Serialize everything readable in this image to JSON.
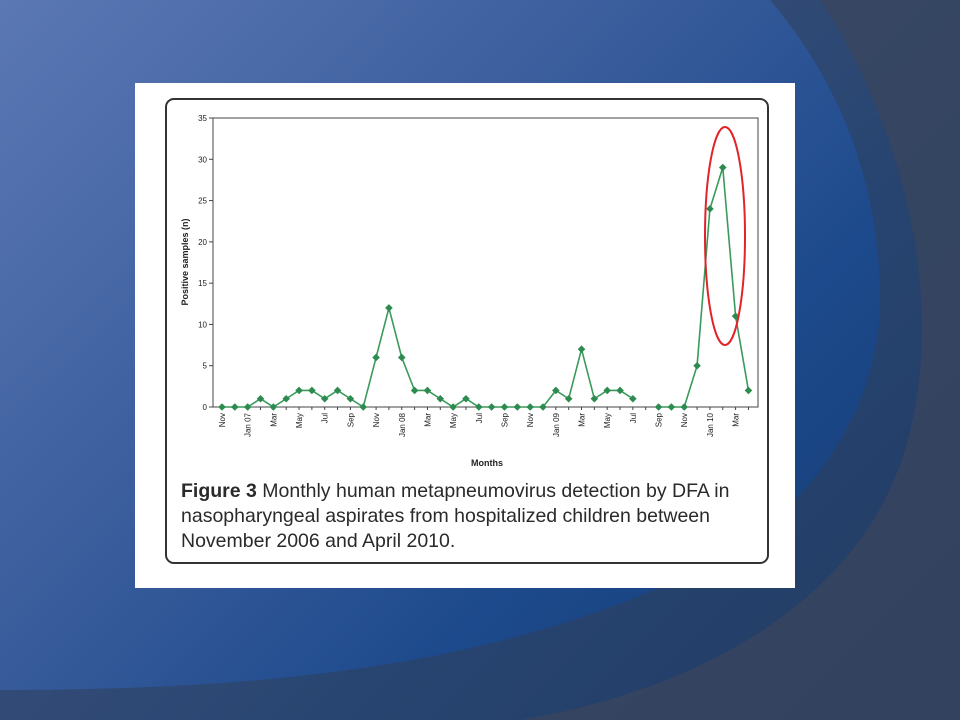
{
  "slide": {
    "background_colors": [
      "#5b78b4",
      "#12386e",
      "#2f3f5a"
    ]
  },
  "caption": {
    "label": "Figure 3",
    "text": " Monthly human metapneumovirus detection by DFA in nasopharyngeal aspirates from hospitalized children between November 2006 and April 2010",
    "period": "."
  },
  "chart_data": {
    "type": "line",
    "title": "",
    "xlabel": "Months",
    "ylabel": "Positive samples (n)",
    "ylim": [
      0,
      35
    ],
    "yticks": [
      0,
      5,
      10,
      15,
      20,
      25,
      30,
      35
    ],
    "grid": false,
    "line_color": "#3a9a5c",
    "marker_color": "#2e8b50",
    "highlight_color": "#e0242a",
    "x_tick_labels": [
      "Nov",
      "",
      "Jan 07",
      "",
      "Mar",
      "",
      "May",
      "",
      "Jul",
      "",
      "Sep",
      "",
      "Nov",
      "",
      "Jan 08",
      "",
      "Mar",
      "",
      "May",
      "",
      "Jul",
      "",
      "Sep",
      "",
      "Nov",
      "",
      "Jan 09",
      "",
      "Mar",
      "",
      "May",
      "",
      "Jul",
      "",
      "Sep",
      "",
      "Nov",
      "",
      "Jan 10",
      "",
      "Mar",
      ""
    ],
    "series": [
      {
        "values": [
          0,
          0,
          0,
          1,
          0,
          1,
          2,
          2,
          1,
          2,
          1,
          0,
          6,
          12,
          6,
          2,
          2,
          1,
          0,
          1,
          0,
          0,
          0,
          0,
          0,
          0,
          2,
          1,
          7,
          1,
          2,
          2,
          1,
          null,
          0,
          0,
          0,
          5,
          24,
          29,
          11,
          2
        ]
      }
    ],
    "highlighted_points": [
      "Jan 10",
      "Feb 10"
    ]
  }
}
